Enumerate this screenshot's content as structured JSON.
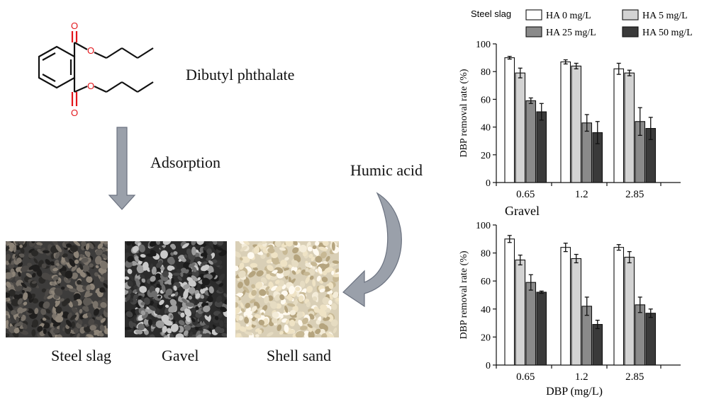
{
  "molecule": {
    "name": "Dibutyl phthalate",
    "atom_o": "O"
  },
  "process": {
    "step": "Adsorption",
    "modifier": "Humic acid"
  },
  "materials": [
    {
      "label": "Steel slag"
    },
    {
      "label": "Gavel"
    },
    {
      "label": "Shell sand"
    }
  ],
  "colors": {
    "arrow": "#9aa0aa",
    "arrow_edge": "#6b7280",
    "oxygen": "#e3161b",
    "HA0": "#ffffff",
    "HA5": "#d3d3d3",
    "HA25": "#8a8a8a",
    "HA50": "#3a3a3a"
  },
  "chart_data": [
    {
      "type": "bar",
      "title": "",
      "panel_label": "Steel slag",
      "xlabel": "",
      "ylabel": "DBP removal rate (%)",
      "ylim": [
        0,
        100
      ],
      "yticks": [
        0,
        20,
        40,
        60,
        80,
        100
      ],
      "categories": [
        "0.65",
        "1.2",
        "2.85"
      ],
      "series": [
        {
          "name": "HA 0 mg/L",
          "values": [
            90,
            87,
            82
          ],
          "errors": [
            1,
            1.5,
            4
          ]
        },
        {
          "name": "HA 5 mg/L",
          "values": [
            79,
            84,
            79
          ],
          "errors": [
            3.5,
            2,
            2
          ]
        },
        {
          "name": "HA 25 mg/L",
          "values": [
            59,
            43,
            44
          ],
          "errors": [
            2,
            6,
            10
          ]
        },
        {
          "name": "HA 50 mg/L",
          "values": [
            51,
            36,
            39
          ],
          "errors": [
            6,
            8,
            8
          ]
        }
      ]
    },
    {
      "type": "bar",
      "title": "",
      "panel_label": "Gravel",
      "xlabel": "DBP (mg/L)",
      "ylabel": "DBP removal rate (%)",
      "ylim": [
        0,
        100
      ],
      "yticks": [
        0,
        20,
        40,
        60,
        80,
        100
      ],
      "categories": [
        "0.65",
        "1.2",
        "2.85"
      ],
      "series": [
        {
          "name": "HA 0 mg/L",
          "values": [
            90,
            84,
            84
          ],
          "errors": [
            2.5,
            3,
            2
          ]
        },
        {
          "name": "HA 5 mg/L",
          "values": [
            75,
            76,
            77
          ],
          "errors": [
            3.5,
            3,
            4
          ]
        },
        {
          "name": "HA 25 mg/L",
          "values": [
            59,
            42,
            43
          ],
          "errors": [
            5.5,
            6.5,
            5.5
          ]
        },
        {
          "name": "HA 50 mg/L",
          "values": [
            52,
            29,
            37
          ],
          "errors": [
            0.8,
            3,
            3
          ]
        }
      ]
    }
  ]
}
